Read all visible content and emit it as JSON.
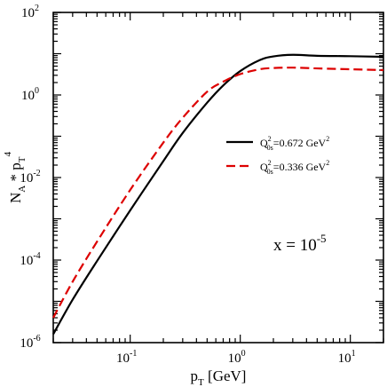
{
  "chart_data": {
    "type": "line",
    "x_scale": "log",
    "y_scale": "log",
    "xlim": [
      0.02,
      20
    ],
    "ylim": [
      1e-06,
      100
    ],
    "xlabel": {
      "base": "p",
      "sub": "T",
      "rest": " [GeV]"
    },
    "ylabel": {
      "p1": "N",
      "s1": "A",
      "p2": " * p",
      "s2": "T",
      "sup": "4"
    },
    "x_ticks": [
      {
        "value": 0.1,
        "base": "10",
        "exp": "-1"
      },
      {
        "value": 1,
        "base": "10",
        "exp": "0"
      },
      {
        "value": 10,
        "base": "10",
        "exp": "1"
      }
    ],
    "y_ticks": [
      {
        "value": 1e-06,
        "base": "10",
        "exp": "-6"
      },
      {
        "value": 0.0001,
        "base": "10",
        "exp": "-4"
      },
      {
        "value": 0.01,
        "base": "10",
        "exp": "-2"
      },
      {
        "value": 1,
        "base": "10",
        "exp": "0"
      },
      {
        "value": 100,
        "base": "10",
        "exp": "2"
      }
    ],
    "annotation": {
      "pre": "x = 10",
      "sup": "-5"
    },
    "legend_position": "right-middle",
    "series": [
      {
        "legend": {
          "pre": "Q",
          "sup": "2",
          "sub": "0s",
          "post": "=0.672 GeV",
          "unit_sup": "2"
        },
        "color": "#000000",
        "style": "solid",
        "points": [
          [
            0.02,
            1.6e-06
          ],
          [
            0.03,
            1.1e-05
          ],
          [
            0.05,
            9.5e-05
          ],
          [
            0.1,
            0.0016
          ],
          [
            0.2,
            0.025
          ],
          [
            0.3,
            0.12
          ],
          [
            0.5,
            0.65
          ],
          [
            0.7,
            1.7
          ],
          [
            1.0,
            3.8
          ],
          [
            1.5,
            7.0
          ],
          [
            2.0,
            8.6
          ],
          [
            3.0,
            9.4
          ],
          [
            5.0,
            8.9
          ],
          [
            10,
            8.7
          ],
          [
            20,
            8.4
          ]
        ]
      },
      {
        "legend": {
          "pre": "Q",
          "sup": "2",
          "sub": "0s",
          "post": "=0.336 GeV",
          "unit_sup": "2"
        },
        "color": "#dd0000",
        "style": "dashed",
        "points": [
          [
            0.02,
            4e-06
          ],
          [
            0.03,
            3e-05
          ],
          [
            0.05,
            0.00028
          ],
          [
            0.1,
            0.005
          ],
          [
            0.2,
            0.07
          ],
          [
            0.3,
            0.28
          ],
          [
            0.5,
            1.2
          ],
          [
            0.7,
            2.1
          ],
          [
            1.0,
            3.2
          ],
          [
            1.5,
            4.2
          ],
          [
            2.0,
            4.5
          ],
          [
            3.0,
            4.6
          ],
          [
            5.0,
            4.4
          ],
          [
            10,
            4.2
          ],
          [
            20,
            4.0
          ]
        ]
      }
    ]
  }
}
